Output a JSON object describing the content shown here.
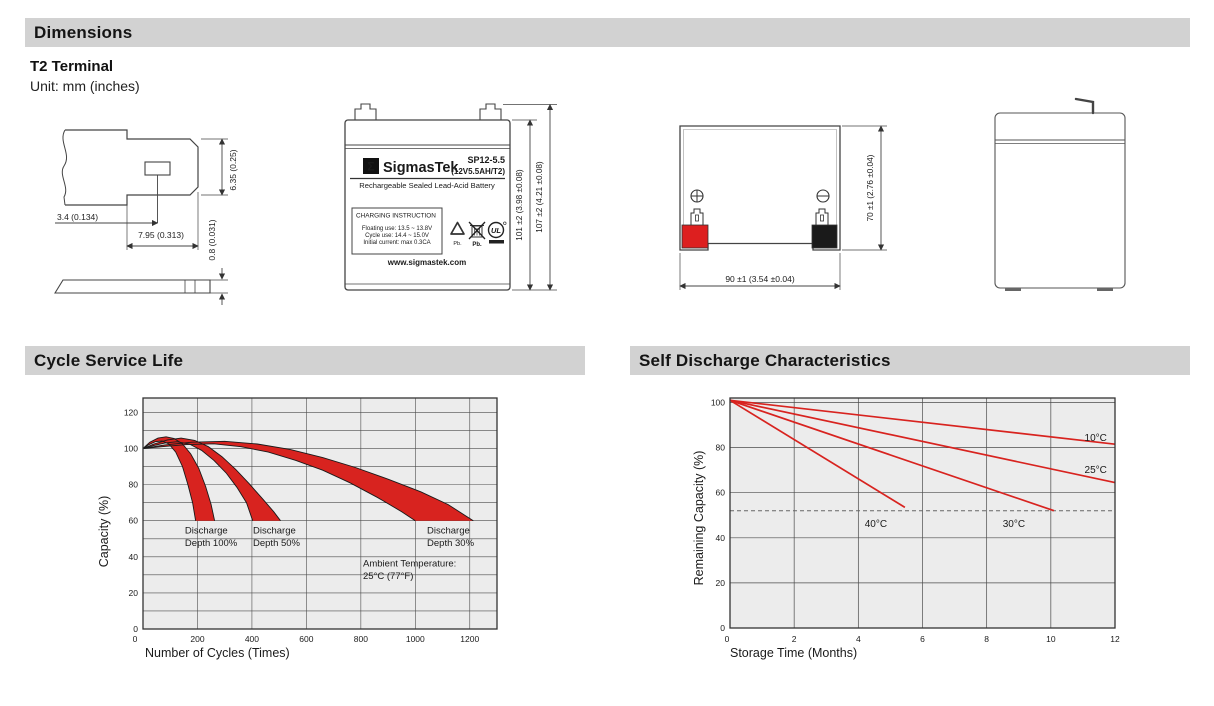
{
  "page": {
    "section_dimensions": "Dimensions",
    "terminal_type": "T2 Terminal",
    "unit_note": "Unit: mm (inches)",
    "section_cycle": "Cycle Service Life",
    "section_self_discharge": "Self Discharge Characteristics"
  },
  "terminal_drawing": {
    "dim_tab_offset": "3.4 (0.134)",
    "dim_tab_length": "7.95 (0.313)",
    "dim_tab_height": "6.35 (0.25)",
    "dim_tab_thickness": "0.8 (0.031)"
  },
  "front_view": {
    "logo_glyph": "Σ",
    "brand": "SigmasTek",
    "model": "SP12-5.5",
    "model_spec": "(12V5.5AH/T2)",
    "battery_type": "Rechargeable Sealed Lead-Acid Battery",
    "charging_title": "CHARGING INSTRUCTION",
    "charging_lines": [
      "Floating use: 13.5 ~ 13.8V",
      "Cycle use: 14.4 ~ 15.0V",
      "Initial current: max 0.3CA"
    ],
    "pb_label_1": "Pb.",
    "pb_label_2": "Pb.",
    "ul_text": "UL",
    "website": "www.sigmastek.com",
    "dim_case_height": "101 ±2 (3.98 ±0.08)",
    "dim_total_height": "107 ±2 (4.21 ±0.08)"
  },
  "top_view": {
    "dim_width": "90 ±1 (3.54 ±0.04)",
    "dim_depth": "70 ±1 (2.76 ±0.04)",
    "positive_terminal_color": "#dd1f1f",
    "negative_terminal_color": "#1a1a1a"
  },
  "colors": {
    "accent_red": "#d8231f",
    "header_bar": "#d2d2d2",
    "plot_bg": "#ececec",
    "grid": "#4c4c4c"
  },
  "chart_data": [
    {
      "type": "area",
      "title": "Cycle Service Life",
      "xlabel": "Number of Cycles (Times)",
      "ylabel": "Capacity (%)",
      "xlim": [
        0,
        1300
      ],
      "ylim": [
        0,
        128
      ],
      "x_ticks": [
        200,
        400,
        600,
        800,
        1000,
        1200
      ],
      "x_origin_label": "0",
      "y_ticks": [
        0,
        20,
        40,
        60,
        80,
        100,
        120
      ],
      "y_grid_step": 10,
      "grid": true,
      "line_color": "#1a1a1a",
      "fill_color": "#d8231f",
      "bands": [
        {
          "name": "Discharge Depth 100%",
          "upper": [
            [
              0,
              100
            ],
            [
              25,
              103.5
            ],
            [
              55,
              105.8
            ],
            [
              85,
              106.5
            ],
            [
              115,
              105.5
            ],
            [
              145,
              102.5
            ],
            [
              175,
              97
            ],
            [
              205,
              89
            ],
            [
              230,
              79
            ],
            [
              250,
              69
            ],
            [
              263,
              60
            ]
          ],
          "lower": [
            [
              0,
              100
            ],
            [
              20,
              102
            ],
            [
              45,
              103.8
            ],
            [
              70,
              104.2
            ],
            [
              95,
              102.5
            ],
            [
              120,
              98
            ],
            [
              145,
              90
            ],
            [
              165,
              80
            ],
            [
              182,
              70
            ],
            [
              193,
              60
            ]
          ]
        },
        {
          "name": "Discharge Depth 50%",
          "upper": [
            [
              0,
              100
            ],
            [
              40,
              102.5
            ],
            [
              90,
              104.8
            ],
            [
              140,
              105.8
            ],
            [
              190,
              104.5
            ],
            [
              240,
              101
            ],
            [
              290,
              95.5
            ],
            [
              340,
              88.5
            ],
            [
              390,
              80.5
            ],
            [
              440,
              72
            ],
            [
              480,
              65
            ],
            [
              505,
              60
            ]
          ],
          "lower": [
            [
              0,
              100
            ],
            [
              35,
              101.5
            ],
            [
              80,
              103
            ],
            [
              125,
              103.8
            ],
            [
              170,
              102.5
            ],
            [
              215,
              99
            ],
            [
              260,
              93.5
            ],
            [
              305,
              86.5
            ],
            [
              345,
              78.5
            ],
            [
              380,
              70
            ],
            [
              403,
              60
            ]
          ]
        },
        {
          "name": "Discharge Depth 30%",
          "upper": [
            [
              0,
              100
            ],
            [
              80,
              102
            ],
            [
              180,
              103.5
            ],
            [
              300,
              104
            ],
            [
              420,
              102.5
            ],
            [
              540,
              99.5
            ],
            [
              660,
              95
            ],
            [
              780,
              89.5
            ],
            [
              900,
              83
            ],
            [
              1020,
              76
            ],
            [
              1120,
              69
            ],
            [
              1213,
              60
            ]
          ],
          "lower": [
            [
              0,
              100
            ],
            [
              70,
              101
            ],
            [
              160,
              102.2
            ],
            [
              260,
              102.6
            ],
            [
              360,
              101
            ],
            [
              460,
              98
            ],
            [
              560,
              93.5
            ],
            [
              660,
              88
            ],
            [
              760,
              81
            ],
            [
              860,
              73
            ],
            [
              950,
              65
            ],
            [
              1000,
              60
            ]
          ]
        }
      ],
      "annotations": [
        {
          "lines": [
            "Discharge",
            "Depth 100%"
          ],
          "x": 154,
          "y": 53
        },
        {
          "lines": [
            "Discharge",
            "Depth 50%"
          ],
          "x": 404,
          "y": 53
        },
        {
          "lines": [
            "Discharge",
            "Depth 30%"
          ],
          "x": 1043,
          "y": 53
        },
        {
          "lines": [
            "Ambient Temperature:",
            "25°C (77°F)"
          ],
          "x": 808,
          "y": 34.5
        }
      ]
    },
    {
      "type": "line",
      "title": "Self Discharge Characteristics",
      "xlabel": "Storage Time (Months)",
      "ylabel": "Remaining Capacity (%)",
      "xlim": [
        0,
        12
      ],
      "ylim": [
        0,
        102
      ],
      "x_ticks": [
        0,
        2,
        4,
        6,
        8,
        10,
        12
      ],
      "y_ticks": [
        0,
        20,
        40,
        60,
        80,
        100
      ],
      "y_grid_step": 20,
      "grid": true,
      "line_color": "#d8231f",
      "dashed_line_y": 52,
      "series": [
        {
          "name": "10°C",
          "points": [
            [
              0,
              101
            ],
            [
              12,
              81.5
            ]
          ],
          "label_x": 11.05,
          "label_y": 83
        },
        {
          "name": "25°C",
          "points": [
            [
              0,
              101
            ],
            [
              12,
              64.5
            ]
          ],
          "label_x": 11.05,
          "label_y": 68.7
        },
        {
          "name": "30°C",
          "points": [
            [
              0,
              101
            ],
            [
              10.1,
              52
            ]
          ],
          "label_x": 8.5,
          "label_y": 44.8
        },
        {
          "name": "40°C",
          "points": [
            [
              0,
              101
            ],
            [
              5.45,
              53.5
            ]
          ],
          "label_x": 4.2,
          "label_y": 44.8
        }
      ]
    }
  ]
}
